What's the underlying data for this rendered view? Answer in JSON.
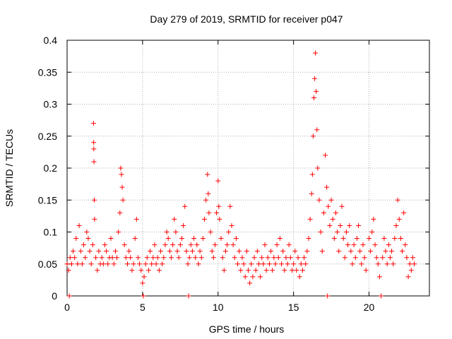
{
  "chart_data": {
    "type": "scatter",
    "title": "Day 279 of 2019, SRMTID for receiver p047",
    "xlabel": "GPS time / hours",
    "ylabel": "SRMTID / TECUs",
    "xlim": [
      0,
      24
    ],
    "ylim": [
      0,
      0.4
    ],
    "xticks": [
      0,
      5,
      10,
      15,
      20
    ],
    "yticks": [
      0,
      0.05,
      0.1,
      0.15,
      0.2,
      0.25,
      0.3,
      0.35,
      0.4
    ],
    "xtick_labels": [
      "0",
      "5",
      "10",
      "15",
      "20"
    ],
    "ytick_labels": [
      "0",
      "0.05",
      "0.1",
      "0.15",
      "0.2",
      "0.25",
      "0.3",
      "0.35",
      "0.4"
    ],
    "grid": true,
    "marker": "+",
    "color": "#ff0000",
    "series": [
      {
        "name": "SRMTID",
        "points": [
          [
            0.0,
            0.05
          ],
          [
            0.1,
            0.04
          ],
          [
            0.15,
            0.0
          ],
          [
            0.2,
            0.06
          ],
          [
            0.3,
            0.05
          ],
          [
            0.4,
            0.07
          ],
          [
            0.5,
            0.06
          ],
          [
            0.6,
            0.09
          ],
          [
            0.7,
            0.05
          ],
          [
            0.8,
            0.11
          ],
          [
            0.9,
            0.07
          ],
          [
            1.0,
            0.05
          ],
          [
            1.1,
            0.08
          ],
          [
            1.2,
            0.06
          ],
          [
            1.3,
            0.1
          ],
          [
            1.4,
            0.09
          ],
          [
            1.5,
            0.07
          ],
          [
            1.6,
            0.05
          ],
          [
            1.7,
            0.08
          ],
          [
            1.75,
            0.27
          ],
          [
            1.76,
            0.24
          ],
          [
            1.77,
            0.23
          ],
          [
            1.78,
            0.21
          ],
          [
            1.8,
            0.15
          ],
          [
            1.82,
            0.12
          ],
          [
            1.9,
            0.06
          ],
          [
            2.0,
            0.04
          ],
          [
            2.1,
            0.07
          ],
          [
            2.2,
            0.05
          ],
          [
            2.3,
            0.06
          ],
          [
            2.4,
            0.05
          ],
          [
            2.5,
            0.08
          ],
          [
            2.6,
            0.07
          ],
          [
            2.7,
            0.05
          ],
          [
            2.8,
            0.06
          ],
          [
            2.9,
            0.09
          ],
          [
            3.0,
            0.06
          ],
          [
            3.1,
            0.05
          ],
          [
            3.2,
            0.07
          ],
          [
            3.3,
            0.06
          ],
          [
            3.4,
            0.1
          ],
          [
            3.5,
            0.13
          ],
          [
            3.55,
            0.2
          ],
          [
            3.6,
            0.19
          ],
          [
            3.65,
            0.17
          ],
          [
            3.7,
            0.15
          ],
          [
            3.8,
            0.08
          ],
          [
            3.9,
            0.06
          ],
          [
            4.0,
            0.05
          ],
          [
            4.1,
            0.07
          ],
          [
            4.2,
            0.06
          ],
          [
            4.3,
            0.04
          ],
          [
            4.4,
            0.05
          ],
          [
            4.5,
            0.09
          ],
          [
            4.6,
            0.12
          ],
          [
            4.7,
            0.06
          ],
          [
            4.8,
            0.05
          ],
          [
            4.9,
            0.04
          ],
          [
            5.0,
            0.02
          ],
          [
            5.05,
            0.0
          ],
          [
            5.1,
            0.03
          ],
          [
            5.2,
            0.05
          ],
          [
            5.3,
            0.06
          ],
          [
            5.4,
            0.04
          ],
          [
            5.5,
            0.07
          ],
          [
            5.6,
            0.05
          ],
          [
            5.7,
            0.06
          ],
          [
            5.8,
            0.08
          ],
          [
            5.9,
            0.05
          ],
          [
            6.0,
            0.06
          ],
          [
            6.1,
            0.04
          ],
          [
            6.2,
            0.07
          ],
          [
            6.3,
            0.05
          ],
          [
            6.4,
            0.06
          ],
          [
            6.5,
            0.08
          ],
          [
            6.6,
            0.1
          ],
          [
            6.7,
            0.09
          ],
          [
            6.8,
            0.07
          ],
          [
            6.9,
            0.06
          ],
          [
            7.0,
            0.08
          ],
          [
            7.1,
            0.12
          ],
          [
            7.2,
            0.1
          ],
          [
            7.3,
            0.07
          ],
          [
            7.4,
            0.06
          ],
          [
            7.5,
            0.08
          ],
          [
            7.6,
            0.09
          ],
          [
            7.7,
            0.11
          ],
          [
            7.8,
            0.14
          ],
          [
            7.9,
            0.07
          ],
          [
            8.0,
            0.05
          ],
          [
            8.05,
            0.0
          ],
          [
            8.1,
            0.06
          ],
          [
            8.2,
            0.08
          ],
          [
            8.3,
            0.07
          ],
          [
            8.4,
            0.09
          ],
          [
            8.5,
            0.06
          ],
          [
            8.6,
            0.08
          ],
          [
            8.7,
            0.05
          ],
          [
            8.8,
            0.07
          ],
          [
            8.9,
            0.06
          ],
          [
            9.0,
            0.09
          ],
          [
            9.1,
            0.12
          ],
          [
            9.2,
            0.15
          ],
          [
            9.3,
            0.19
          ],
          [
            9.35,
            0.16
          ],
          [
            9.4,
            0.13
          ],
          [
            9.5,
            0.1
          ],
          [
            9.6,
            0.07
          ],
          [
            9.7,
            0.06
          ],
          [
            9.8,
            0.08
          ],
          [
            9.9,
            0.13
          ],
          [
            10.0,
            0.18
          ],
          [
            10.05,
            0.14
          ],
          [
            10.1,
            0.12
          ],
          [
            10.2,
            0.09
          ],
          [
            10.3,
            0.06
          ],
          [
            10.4,
            0.04
          ],
          [
            10.5,
            0.07
          ],
          [
            10.6,
            0.08
          ],
          [
            10.7,
            0.1
          ],
          [
            10.8,
            0.14
          ],
          [
            10.9,
            0.11
          ],
          [
            11.0,
            0.08
          ],
          [
            11.1,
            0.06
          ],
          [
            11.2,
            0.09
          ],
          [
            11.3,
            0.05
          ],
          [
            11.4,
            0.07
          ],
          [
            11.5,
            0.04
          ],
          [
            11.6,
            0.06
          ],
          [
            11.7,
            0.05
          ],
          [
            11.8,
            0.03
          ],
          [
            11.9,
            0.07
          ],
          [
            12.0,
            0.04
          ],
          [
            12.1,
            0.02
          ],
          [
            12.2,
            0.05
          ],
          [
            12.3,
            0.03
          ],
          [
            12.4,
            0.06
          ],
          [
            12.5,
            0.04
          ],
          [
            12.6,
            0.07
          ],
          [
            12.7,
            0.05
          ],
          [
            12.8,
            0.03
          ],
          [
            12.9,
            0.06
          ],
          [
            13.0,
            0.05
          ],
          [
            13.1,
            0.08
          ],
          [
            13.2,
            0.04
          ],
          [
            13.3,
            0.06
          ],
          [
            13.4,
            0.05
          ],
          [
            13.5,
            0.07
          ],
          [
            13.6,
            0.04
          ],
          [
            13.7,
            0.06
          ],
          [
            13.8,
            0.05
          ],
          [
            13.9,
            0.08
          ],
          [
            14.0,
            0.06
          ],
          [
            14.1,
            0.09
          ],
          [
            14.2,
            0.05
          ],
          [
            14.3,
            0.07
          ],
          [
            14.4,
            0.04
          ],
          [
            14.5,
            0.06
          ],
          [
            14.6,
            0.05
          ],
          [
            14.7,
            0.08
          ],
          [
            14.8,
            0.06
          ],
          [
            14.9,
            0.04
          ],
          [
            15.0,
            0.05
          ],
          [
            15.1,
            0.07
          ],
          [
            15.2,
            0.04
          ],
          [
            15.3,
            0.06
          ],
          [
            15.4,
            0.03
          ],
          [
            15.5,
            0.05
          ],
          [
            15.6,
            0.04
          ],
          [
            15.7,
            0.06
          ],
          [
            15.8,
            0.05
          ],
          [
            15.9,
            0.07
          ],
          [
            16.0,
            0.09
          ],
          [
            16.1,
            0.12
          ],
          [
            16.2,
            0.16
          ],
          [
            16.25,
            0.19
          ],
          [
            16.3,
            0.25
          ],
          [
            16.35,
            0.31
          ],
          [
            16.4,
            0.34
          ],
          [
            16.45,
            0.38
          ],
          [
            16.5,
            0.32
          ],
          [
            16.55,
            0.26
          ],
          [
            16.6,
            0.2
          ],
          [
            16.7,
            0.15
          ],
          [
            16.8,
            0.1
          ],
          [
            16.9,
            0.07
          ],
          [
            17.0,
            0.13
          ],
          [
            17.1,
            0.22
          ],
          [
            17.2,
            0.17
          ],
          [
            17.25,
            0.0
          ],
          [
            17.3,
            0.14
          ],
          [
            17.4,
            0.11
          ],
          [
            17.5,
            0.15
          ],
          [
            17.6,
            0.12
          ],
          [
            17.7,
            0.09
          ],
          [
            17.8,
            0.13
          ],
          [
            17.9,
            0.1
          ],
          [
            18.0,
            0.07
          ],
          [
            18.1,
            0.11
          ],
          [
            18.2,
            0.14
          ],
          [
            18.3,
            0.09
          ],
          [
            18.4,
            0.06
          ],
          [
            18.5,
            0.1
          ],
          [
            18.6,
            0.08
          ],
          [
            18.7,
            0.11
          ],
          [
            18.8,
            0.07
          ],
          [
            18.9,
            0.05
          ],
          [
            19.0,
            0.08
          ],
          [
            19.1,
            0.06
          ],
          [
            19.2,
            0.09
          ],
          [
            19.3,
            0.11
          ],
          [
            19.4,
            0.07
          ],
          [
            19.5,
            0.05
          ],
          [
            19.6,
            0.08
          ],
          [
            19.7,
            0.06
          ],
          [
            19.8,
            0.04
          ],
          [
            20.0,
            0.09
          ],
          [
            20.1,
            0.07
          ],
          [
            20.2,
            0.1
          ],
          [
            20.3,
            0.12
          ],
          [
            20.4,
            0.08
          ],
          [
            20.5,
            0.06
          ],
          [
            20.6,
            0.05
          ],
          [
            20.7,
            0.03
          ],
          [
            20.8,
            0.0
          ],
          [
            20.9,
            0.06
          ],
          [
            21.0,
            0.09
          ],
          [
            21.1,
            0.07
          ],
          [
            21.2,
            0.05
          ],
          [
            21.3,
            0.08
          ],
          [
            21.4,
            0.06
          ],
          [
            21.5,
            0.07
          ],
          [
            21.6,
            0.05
          ],
          [
            21.7,
            0.09
          ],
          [
            21.8,
            0.11
          ],
          [
            21.9,
            0.15
          ],
          [
            22.0,
            0.12
          ],
          [
            22.1,
            0.09
          ],
          [
            22.2,
            0.07
          ],
          [
            22.3,
            0.13
          ],
          [
            22.4,
            0.08
          ],
          [
            22.5,
            0.06
          ],
          [
            22.6,
            0.03
          ],
          [
            22.7,
            0.05
          ],
          [
            22.8,
            0.04
          ],
          [
            22.9,
            0.06
          ],
          [
            23.0,
            0.05
          ]
        ]
      }
    ]
  }
}
